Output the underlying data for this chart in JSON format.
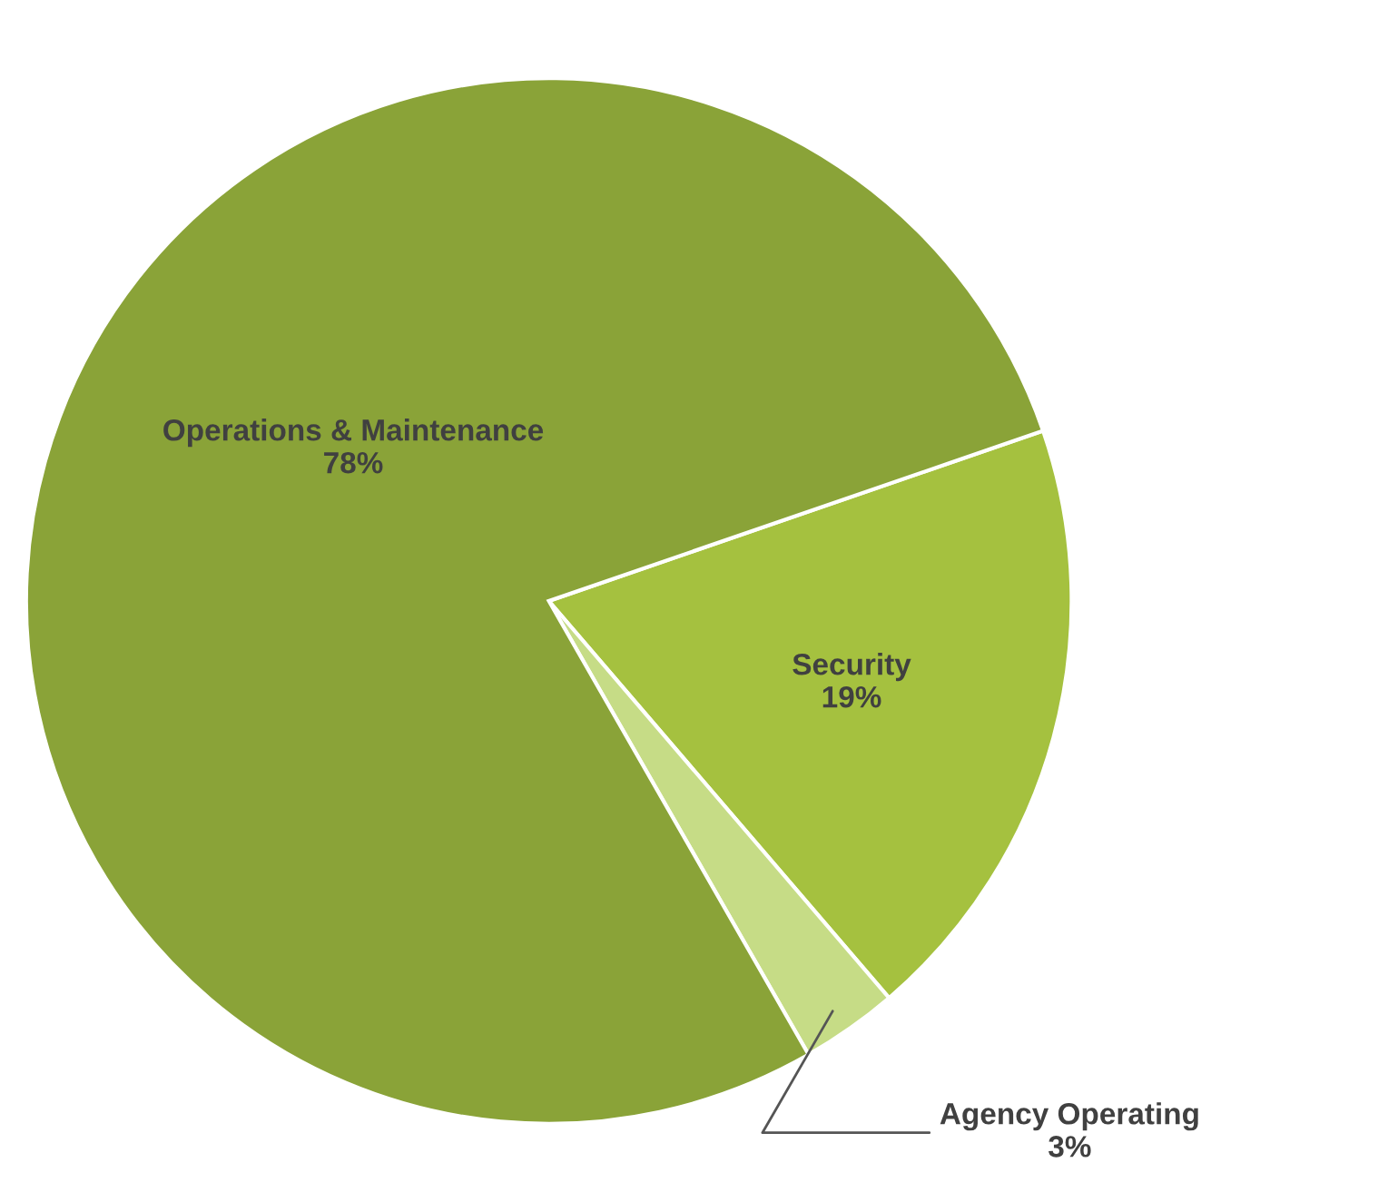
{
  "chart_data": {
    "type": "pie",
    "categories": [
      "Security",
      "Agency Operating",
      "Operations & Maintenance"
    ],
    "values": [
      19,
      3,
      78
    ],
    "value_labels": [
      "19%",
      "3%",
      "78%"
    ],
    "colors": [
      "#a5c13f",
      "#c6dc86",
      "#8aa338"
    ],
    "legend": false
  }
}
